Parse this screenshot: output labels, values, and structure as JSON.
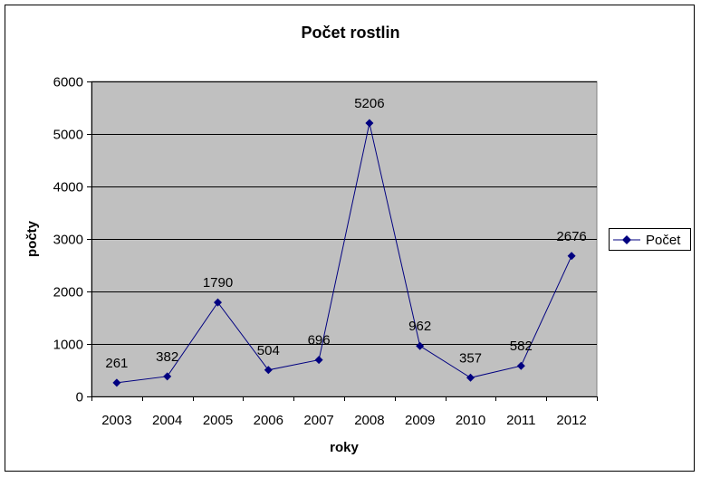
{
  "chart_data": {
    "type": "line",
    "title": "Počet rostlin",
    "xlabel": "roky",
    "ylabel": "počty",
    "categories": [
      "2003",
      "2004",
      "2005",
      "2006",
      "2007",
      "2008",
      "2009",
      "2010",
      "2011",
      "2012"
    ],
    "series": [
      {
        "name": "Počet",
        "values": [
          261,
          382,
          1790,
          504,
          696,
          5206,
          962,
          357,
          582,
          2676
        ],
        "color": "#000080"
      }
    ],
    "ylim": [
      0,
      6000
    ],
    "yticks": [
      0,
      1000,
      2000,
      3000,
      4000,
      5000,
      6000
    ],
    "grid": true,
    "legend": "right",
    "colors": {
      "plot_background": "#c0c0c0",
      "line": "#000080"
    }
  }
}
